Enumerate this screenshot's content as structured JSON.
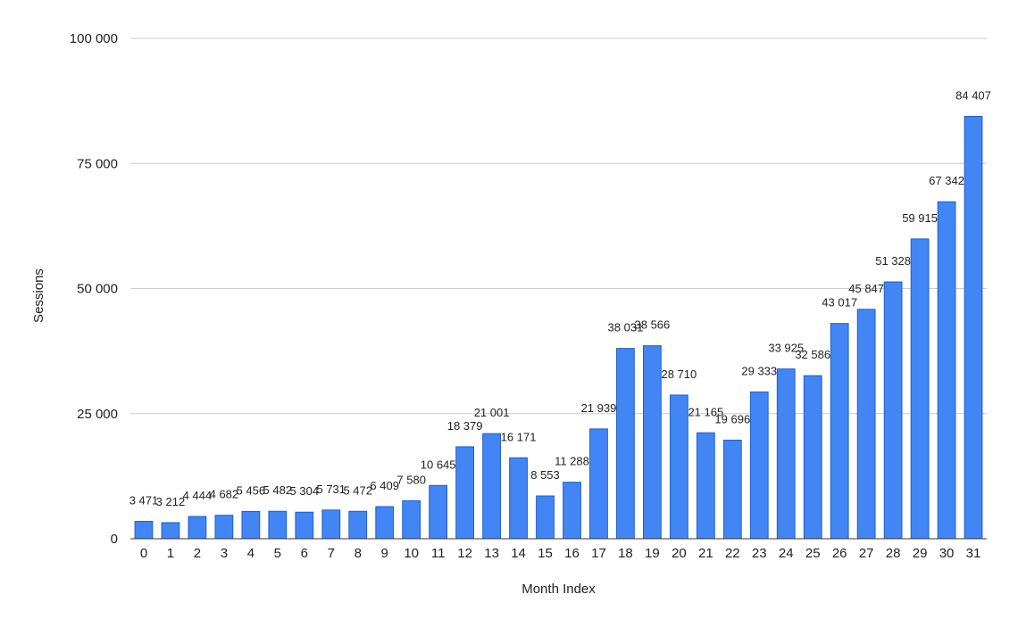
{
  "chart_data": {
    "type": "bar",
    "xlabel": "Month Index",
    "ylabel": "Sessions",
    "ylim": [
      0,
      100000
    ],
    "yticks": [
      0,
      25000,
      50000,
      75000,
      100000
    ],
    "ytick_labels": [
      "0",
      "25 000",
      "50 000",
      "75 000",
      "100 000"
    ],
    "categories": [
      "0",
      "1",
      "2",
      "3",
      "4",
      "5",
      "6",
      "7",
      "8",
      "9",
      "10",
      "11",
      "12",
      "13",
      "14",
      "15",
      "16",
      "17",
      "18",
      "19",
      "20",
      "21",
      "22",
      "23",
      "24",
      "25",
      "26",
      "27",
      "28",
      "29",
      "30",
      "31"
    ],
    "values": [
      3471,
      3212,
      4444,
      4682,
      5456,
      5482,
      5304,
      5731,
      5472,
      6409,
      7580,
      10645,
      18379,
      21001,
      16171,
      8553,
      11288,
      21939,
      38031,
      38566,
      28710,
      21165,
      19696,
      29333,
      33925,
      32586,
      43017,
      45847,
      51328,
      59915,
      67342,
      84407
    ],
    "data_labels": [
      "3 471",
      "3 212",
      "4 444",
      "4 682",
      "5 456",
      "5 482",
      "5 304",
      "5 731",
      "5 472",
      "6 409",
      "7 580",
      "10 645",
      "18 379",
      "21 001",
      "16 171",
      "8 553",
      "11 288",
      "21 939",
      "38 031",
      "38 566",
      "28 710",
      "21 165",
      "19 696",
      "29 333",
      "33 925",
      "32 586",
      "43 017",
      "45 847",
      "51 328",
      "59 915",
      "67 342",
      "84 407"
    ],
    "bar_color": "#4285f4",
    "bar_stroke": "#1f5fcc",
    "grid": true,
    "legend": "none"
  }
}
